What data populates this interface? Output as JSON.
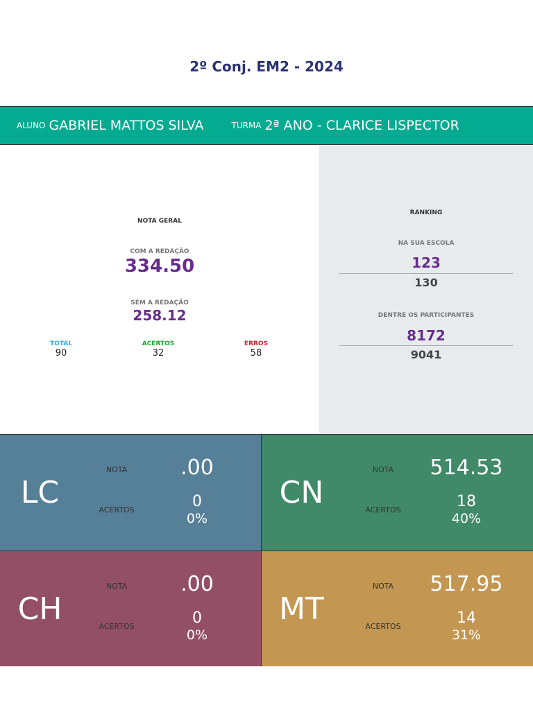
{
  "title": "2º Conj. EM2 - 2024",
  "header": {
    "aluno_label": "ALUNO",
    "aluno": "GABRIEL MATTOS SILVA",
    "turma_label": "TURMA",
    "turma": "2ª ANO - CLARICE LISPECTOR"
  },
  "nota_geral": {
    "label": "NOTA GERAL",
    "com_label": "COM A REDAÇÃO",
    "com": "334.50",
    "sem_label": "SEM A REDAÇÃO",
    "sem": "258.12",
    "total_label": "TOTAL",
    "total": "90",
    "acertos_label": "ACERTOS",
    "acertos": "32",
    "erros_label": "ERROS",
    "erros": "58"
  },
  "ranking": {
    "label": "RANKING",
    "escola_label": "NA SUA ESCOLA",
    "escola_pos": "123",
    "escola_total": "130",
    "part_label": "DENTRE OS PARTICIPANTES",
    "part_pos": "8172",
    "part_total": "9041"
  },
  "areas": [
    {
      "abbr": "LC",
      "nota_label": "NOTA",
      "nota": ".00",
      "acertos_label": "ACERTOS",
      "acertos": "0",
      "pct": "0%",
      "color": "#567f98"
    },
    {
      "abbr": "CN",
      "nota_label": "NOTA",
      "nota": "514.53",
      "acertos_label": "ACERTOS",
      "acertos": "18",
      "pct": "40%",
      "color": "#408a69"
    },
    {
      "abbr": "CH",
      "nota_label": "NOTA",
      "nota": ".00",
      "acertos_label": "ACERTOS",
      "acertos": "0",
      "pct": "0%",
      "color": "#924f66"
    },
    {
      "abbr": "MT",
      "nota_label": "NOTA",
      "nota": "517.95",
      "acertos_label": "ACERTOS",
      "acertos": "14",
      "pct": "31%",
      "color": "#c39651"
    }
  ]
}
